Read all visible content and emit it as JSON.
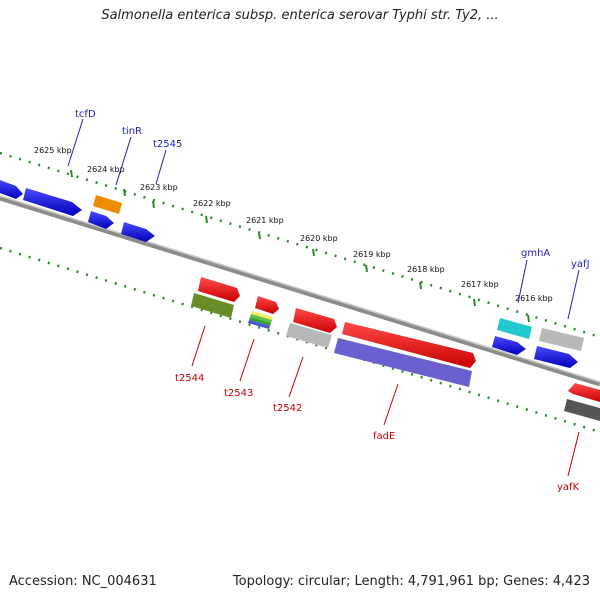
{
  "title": "Salmonella enterica subsp. enterica serovar Typhi str. Ty2, ...",
  "footer": {
    "accession": "Accession: NC_004631",
    "topology": "Topology: circular; Length: 4,791,961 bp; Genes: 4,423"
  },
  "scale": {
    "unit": "kbp",
    "ticks": [
      {
        "kbp": 2625,
        "label": "2625 kbp"
      },
      {
        "kbp": 2624,
        "label": "2624 kbp"
      },
      {
        "kbp": 2623,
        "label": "2623 kbp"
      },
      {
        "kbp": 2622,
        "label": "2622 kbp"
      },
      {
        "kbp": 2621,
        "label": "2621 kbp"
      },
      {
        "kbp": 2620,
        "label": "2620 kbp"
      },
      {
        "kbp": 2619,
        "label": "2619 kbp"
      },
      {
        "kbp": 2618,
        "label": "2618 kbp"
      },
      {
        "kbp": 2617,
        "label": "2617 kbp"
      },
      {
        "kbp": 2616,
        "label": "2616 kbp"
      }
    ]
  },
  "gene_labels": {
    "outer": [
      "tcfD",
      "tinR",
      "t2545",
      "gmhA",
      "yafJ"
    ],
    "inner": [
      "t2544",
      "t2543",
      "t2542",
      "fadE",
      "yafK"
    ]
  },
  "colors": {
    "blue": "#1010e0",
    "red": "#ee1010",
    "orange": "#f08c00",
    "cyan": "#20c8d0",
    "gray": "#b8b8b8",
    "olive": "#6a8c28",
    "purple": "#6a60d0",
    "darkgray": "#555555",
    "tick_green": "#2a8a2a",
    "outer_label": "#1f1fc0",
    "inner_label": "#c00000"
  }
}
